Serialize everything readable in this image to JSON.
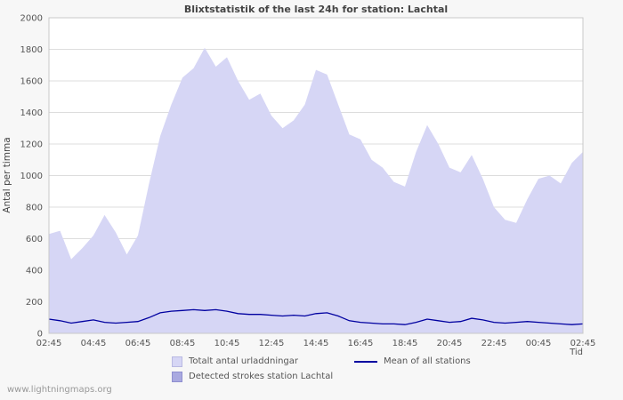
{
  "footer": {
    "text": "www.lightningmaps.org"
  },
  "colors": {
    "page_bg": "#f7f7f7",
    "plot_bg": "#ffffff",
    "plot_border": "#c8c8c8",
    "grid": "#dddddd",
    "axis_text": "#555555",
    "total_fill": "#d6d6f5",
    "detected_fill": "#a9a9e0",
    "mean_line": "#0000a0"
  },
  "chart_data": {
    "type": "area",
    "title": "Blixtstatistik of the last 24h for station: Lachtal",
    "xlabel": "Tid",
    "ylabel": "Antal per timma",
    "ylim": [
      0,
      2000
    ],
    "grid": true,
    "legend_position": "bottom",
    "y_ticks": [
      0,
      200,
      400,
      600,
      800,
      1000,
      1200,
      1400,
      1600,
      1800,
      2000
    ],
    "x_tick_labels": [
      "02:45",
      "04:45",
      "06:45",
      "08:45",
      "10:45",
      "12:45",
      "14:45",
      "16:45",
      "18:45",
      "20:45",
      "22:45",
      "00:45",
      "02:45"
    ],
    "points_per_tick": 4,
    "series": [
      {
        "name": "Totalt antal urladdningar",
        "type": "area",
        "color": "#d6d6f5",
        "values": [
          630,
          650,
          470,
          540,
          620,
          750,
          640,
          500,
          620,
          950,
          1250,
          1450,
          1620,
          1680,
          1810,
          1690,
          1750,
          1600,
          1480,
          1520,
          1380,
          1300,
          1350,
          1450,
          1670,
          1640,
          1450,
          1260,
          1230,
          1100,
          1050,
          960,
          930,
          1150,
          1320,
          1200,
          1050,
          1020,
          1130,
          980,
          800,
          720,
          700,
          850,
          980,
          1000,
          950,
          1080,
          1150
        ]
      },
      {
        "name": "Detected strokes station Lachtal",
        "type": "area",
        "color": "#a9a9e0",
        "values": [
          0,
          0,
          0,
          0,
          0,
          0,
          0,
          0,
          0,
          0,
          0,
          0,
          0,
          0,
          0,
          0,
          0,
          0,
          0,
          0,
          0,
          0,
          0,
          0,
          0,
          0,
          0,
          0,
          0,
          0,
          0,
          0,
          0,
          0,
          0,
          0,
          0,
          0,
          0,
          0,
          0,
          0,
          0,
          0,
          0,
          0,
          0,
          0,
          0
        ]
      },
      {
        "name": "Mean of all stations",
        "type": "line",
        "color": "#0000a0",
        "values": [
          90,
          80,
          65,
          75,
          85,
          70,
          65,
          70,
          75,
          100,
          130,
          140,
          145,
          150,
          145,
          150,
          140,
          125,
          120,
          120,
          115,
          110,
          115,
          110,
          125,
          130,
          110,
          80,
          70,
          65,
          60,
          60,
          55,
          70,
          90,
          80,
          70,
          75,
          95,
          85,
          70,
          65,
          70,
          75,
          70,
          65,
          60,
          55,
          60
        ]
      }
    ]
  }
}
